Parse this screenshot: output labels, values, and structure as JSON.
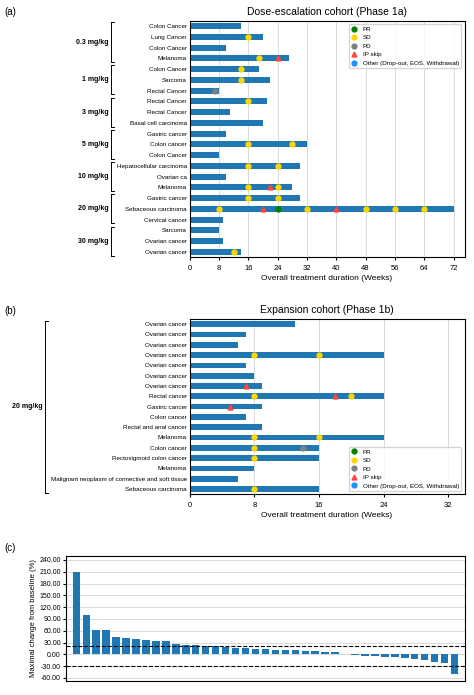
{
  "chart_data": [
    {
      "type": "bar",
      "orientation": "horizontal",
      "annotation": "(a)",
      "title": "Dose-escalation cohort (Phase 1a)",
      "xlabel": "Overall treatment duration (Weeks)",
      "xlim": [
        0,
        75
      ],
      "xticks": [
        0,
        8,
        16,
        24,
        32,
        40,
        48,
        56,
        64,
        72
      ],
      "grid": true,
      "legend": "upper right",
      "categories": [
        "Colon Cancer",
        "Lung Cancer",
        "Colon Cancer",
        "Melanoma",
        "Colon Cancer",
        "Sarcoma",
        "Rectal Cancer",
        "Rectal Cancer",
        "Rectal Cancer",
        "Basal cell carcinoma",
        "Gastric cancer",
        "Colon cancer",
        "Colon Cancer",
        "Hepatocellular carcinoma",
        "Ovarian ca",
        "Melanoma",
        "Gastric cancer",
        "Sebaceous carcinoma",
        "Cervical cancer",
        "Sarcoma",
        "Ovarian cancer",
        "Ovarian cancer"
      ],
      "groups": [
        "0.3 mg/kg",
        "0.3 mg/kg",
        "0.3 mg/kg",
        "0.3 mg/kg",
        "1 mg/kg",
        "1 mg/kg",
        "1 mg/kg",
        "3 mg/kg",
        "3 mg/kg",
        "3 mg/kg",
        "5 mg/kg",
        "5 mg/kg",
        "5 mg/kg",
        "10 mg/kg",
        "10 mg/kg",
        "10 mg/kg",
        "20 mg/kg",
        "20 mg/kg",
        "20 mg/kg",
        "30 mg/kg",
        "30 mg/kg",
        "30 mg/kg"
      ],
      "values": [
        14,
        20,
        10,
        27,
        19,
        22,
        8,
        21,
        11,
        20,
        10,
        32,
        8,
        30,
        10,
        28,
        30,
        72,
        9,
        8,
        9,
        14
      ],
      "series": [
        {
          "name": "PR",
          "type": "scatter",
          "marker": "circle",
          "color": "#008000",
          "values": [
            [],
            [],
            [],
            [],
            [],
            [],
            [],
            [],
            [],
            [],
            [],
            [],
            [],
            [],
            [],
            [],
            [],
            [
              24
            ],
            [],
            [],
            [],
            []
          ]
        },
        {
          "name": "SD",
          "type": "scatter",
          "marker": "circle",
          "color": "#FFD700",
          "values": [
            [],
            [
              16
            ],
            [],
            [
              19
            ],
            [
              14
            ],
            [
              14
            ],
            [],
            [
              16
            ],
            [],
            [],
            [],
            [
              16,
              28
            ],
            [],
            [
              16,
              24
            ],
            [],
            [
              16,
              24
            ],
            [
              16,
              24
            ],
            [
              8,
              32,
              48,
              56,
              64
            ],
            [],
            [],
            [],
            [
              12
            ]
          ]
        },
        {
          "name": "PD",
          "type": "scatter",
          "marker": "circle",
          "color": "#808080",
          "values": [
            [],
            [],
            [],
            [],
            [],
            [],
            [
              7
            ],
            [],
            [],
            [],
            [],
            [],
            [],
            [],
            [],
            [],
            [],
            [],
            [],
            [],
            [],
            []
          ]
        },
        {
          "name": "IP skip",
          "type": "scatter",
          "marker": "triangle",
          "color": "#FF4444",
          "values": [
            [],
            [],
            [],
            [
              24
            ],
            [],
            [],
            [],
            [],
            [],
            [],
            [],
            [],
            [],
            [],
            [],
            [
              22
            ],
            [],
            [
              20,
              40
            ],
            [],
            [],
            [],
            []
          ]
        },
        {
          "name": "Other (Drop-out, EOS, Withdrawal)",
          "type": "scatter",
          "marker": "circle",
          "color": "#1E90FF",
          "values": [
            [],
            [],
            [],
            [],
            [],
            [],
            [],
            [],
            [],
            [],
            [],
            [],
            [],
            [],
            [],
            [],
            [],
            [],
            [],
            [],
            [],
            []
          ]
        }
      ]
    },
    {
      "type": "bar",
      "orientation": "horizontal",
      "annotation": "(b)",
      "title": "Expansion cohort (Phase 1b)",
      "xlabel": "Overall treatment duration (Weeks)",
      "xlim": [
        0,
        34
      ],
      "xticks": [
        0,
        8,
        16,
        24,
        32
      ],
      "grid": true,
      "legend": "lower right",
      "categories": [
        "Ovarian cancer",
        "Ovarian cancer",
        "Ovarian cancer",
        "Ovarian cancer",
        "Ovarian cancer",
        "Ovarian cancer",
        "Ovarian cancer",
        "Rectal cancer",
        "Gastric cancer",
        "Colon cancer",
        "Rectal and anal cancer",
        "Melanoma",
        "Colon cancer",
        "Rectosigmoid colon cancer",
        "Melanoma",
        "Malignant neoplasm of connective and soft tissue",
        "Sebaceous carcinoma"
      ],
      "groups": [
        "20 mg/kg",
        "20 mg/kg",
        "20 mg/kg",
        "20 mg/kg",
        "20 mg/kg",
        "20 mg/kg",
        "20 mg/kg",
        "20 mg/kg",
        "20 mg/kg",
        "20 mg/kg",
        "20 mg/kg",
        "20 mg/kg",
        "20 mg/kg",
        "20 mg/kg",
        "20 mg/kg",
        "20 mg/kg",
        "20 mg/kg"
      ],
      "values": [
        13,
        7,
        6,
        24,
        7,
        8,
        9,
        24,
        9,
        7,
        9,
        24,
        16,
        16,
        8,
        6,
        16
      ],
      "series": [
        {
          "name": "PR",
          "type": "scatter",
          "marker": "circle",
          "color": "#008000",
          "values": [
            [],
            [],
            [],
            [],
            [],
            [],
            [],
            [],
            [],
            [],
            [],
            [],
            [],
            [],
            [],
            [],
            []
          ]
        },
        {
          "name": "SD",
          "type": "scatter",
          "marker": "circle",
          "color": "#FFD700",
          "values": [
            [],
            [],
            [],
            [
              8,
              16
            ],
            [],
            [],
            [],
            [
              8,
              20
            ],
            [],
            [],
            [],
            [
              8,
              16
            ],
            [
              8
            ],
            [
              8
            ],
            [],
            [],
            [
              8
            ]
          ]
        },
        {
          "name": "PD",
          "type": "scatter",
          "marker": "circle",
          "color": "#808080",
          "values": [
            [],
            [],
            [],
            [],
            [],
            [],
            [],
            [],
            [],
            [],
            [],
            [],
            [
              14
            ],
            [],
            [],
            [],
            []
          ]
        },
        {
          "name": "IP skip",
          "type": "scatter",
          "marker": "triangle",
          "color": "#FF4444",
          "values": [
            [],
            [],
            [],
            [],
            [],
            [],
            [
              7
            ],
            [
              18
            ],
            [
              5
            ],
            [],
            [],
            [],
            [],
            [],
            [],
            [],
            []
          ]
        },
        {
          "name": "Other (Drop-out, EOS, Withdrawal)",
          "type": "scatter",
          "marker": "circle",
          "color": "#1E90FF",
          "values": [
            [],
            [],
            [],
            [],
            [],
            [],
            [],
            [],
            [],
            [],
            [],
            [],
            [],
            [],
            [],
            [],
            []
          ]
        }
      ]
    },
    {
      "type": "bar",
      "annotation": "(c)",
      "ylabel": "Maximal change from baseline (%)",
      "ylim": [
        -68,
        250
      ],
      "yticks": [
        {
          "value": -60,
          "label": "-60.00"
        },
        {
          "value": -30,
          "label": "-30.00"
        },
        {
          "value": 0,
          "label": "0.00"
        },
        {
          "value": 30,
          "label": "30.00"
        },
        {
          "value": 60,
          "label": "60.00"
        },
        {
          "value": 90,
          "label": "90.00"
        },
        {
          "value": 120,
          "label": "120.00"
        },
        {
          "value": 150,
          "label": "150.00"
        },
        {
          "value": 180,
          "label": "180.00"
        },
        {
          "value": 210,
          "label": "210.00"
        },
        {
          "value": 240,
          "label": "240.00"
        }
      ],
      "grid": true,
      "tick_labels": "y",
      "reference_lines": [
        20,
        -30
      ],
      "line_style": "dashed",
      "values": [
        210,
        100,
        63,
        61,
        44,
        42,
        40,
        37,
        35,
        33,
        27,
        25,
        24,
        22,
        20,
        18,
        16,
        15,
        14,
        13,
        12,
        11,
        10,
        9,
        8,
        7,
        5,
        2,
        -2,
        -3,
        -5,
        -6,
        -8,
        -10,
        -12,
        -14,
        -20,
        -22,
        -50
      ]
    }
  ]
}
